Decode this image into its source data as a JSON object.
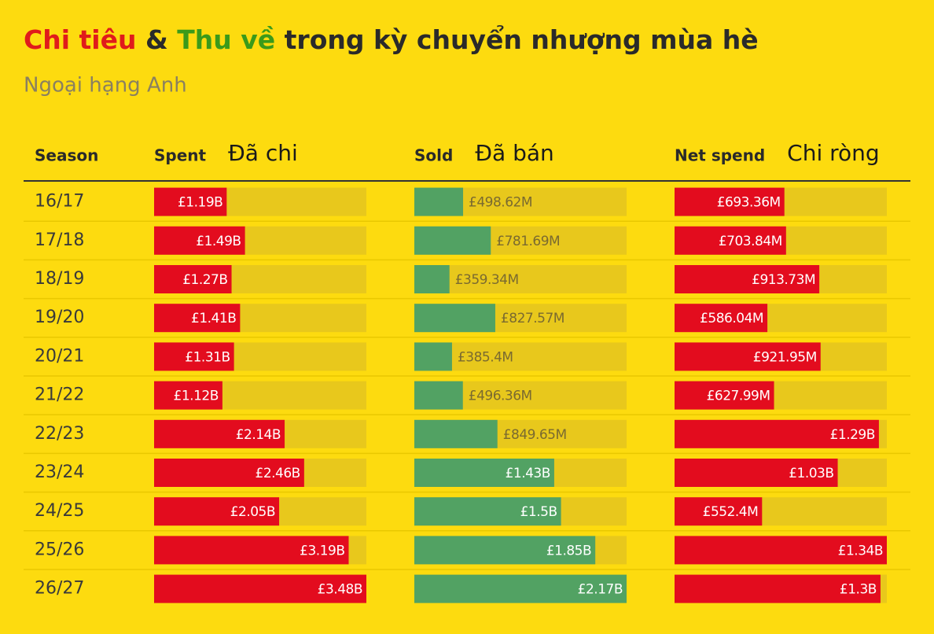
{
  "chart_data": {
    "type": "table-bar",
    "title_parts": [
      {
        "text": "Chi tiêu",
        "color": "#e01b1b"
      },
      {
        "text": "&",
        "color": "#2a2a2a"
      },
      {
        "text": "Thu về",
        "color": "#3a9a1a"
      },
      {
        "text": "trong kỳ chuyển nhượng mùa hè",
        "color": "#2a2a2a"
      }
    ],
    "subtitle": "Ngoại hạng Anh",
    "category_label": "Season",
    "categories": [
      "16/17",
      "17/18",
      "18/19",
      "19/20",
      "20/21",
      "21/22",
      "22/23",
      "23/24",
      "24/25",
      "25/26",
      "26/27"
    ],
    "series": [
      {
        "name": "Spent",
        "translation": "Đã chi",
        "color": "#e30c1e",
        "values": [
          1190,
          1490,
          1270,
          1410,
          1310,
          1120,
          2140,
          2460,
          2050,
          3190,
          3480
        ],
        "value_labels": [
          "£1.19B",
          "£1.49B",
          "£1.27B",
          "£1.41B",
          "£1.31B",
          "£1.12B",
          "£2.14B",
          "£2.46B",
          "£2.05B",
          "£3.19B",
          "£3.48B"
        ]
      },
      {
        "name": "Sold",
        "translation": "Đã bán",
        "color": "#52a263",
        "values": [
          498.62,
          781.69,
          359.34,
          827.57,
          385.4,
          496.36,
          849.65,
          1430,
          1500,
          1850,
          2170
        ],
        "value_labels": [
          "£498.62M",
          "£781.69M",
          "£359.34M",
          "£827.57M",
          "£385.4M",
          "£496.36M",
          "£849.65M",
          "£1.43B",
          "£1.5B",
          "£1.85B",
          "£2.17B"
        ]
      },
      {
        "name": "Net spend",
        "translation": "Chi ròng",
        "color": "#e30c1e",
        "values": [
          693.36,
          703.84,
          913.73,
          586.04,
          921.95,
          627.99,
          1290,
          1030,
          552.4,
          1340,
          1300
        ],
        "value_labels": [
          "£693.36M",
          "£703.84M",
          "£913.73M",
          "£586.04M",
          "£921.95M",
          "£627.99M",
          "£1.29B",
          "£1.03B",
          "£552.4M",
          "£1.34B",
          "£1.3B"
        ]
      }
    ]
  }
}
